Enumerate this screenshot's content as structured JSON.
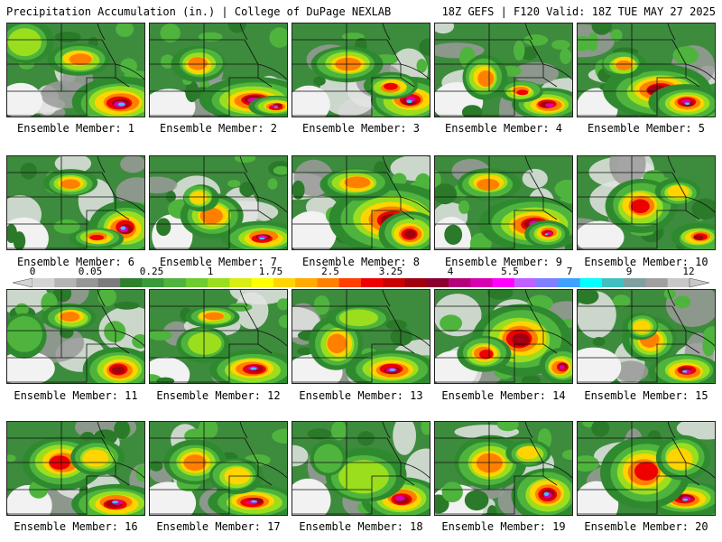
{
  "header": {
    "left": "Precipitation Accumulation (in.) | College of DuPage NEXLAB",
    "right": "18Z GEFS | F120 Valid: 18Z TUE MAY 27 2025"
  },
  "colorbar": {
    "labels": [
      "0",
      "0.05",
      "0.25",
      "1",
      "1.75",
      "2.5",
      "3.25",
      "4",
      "5.5",
      "7",
      "9",
      "12"
    ],
    "colors": [
      "#d4d4d4",
      "#b4b4b4",
      "#969696",
      "#7c7c7c",
      "#2f7f2f",
      "#3a9a3a",
      "#4fb43d",
      "#6dcc2e",
      "#9ade1e",
      "#d8ee12",
      "#ffff00",
      "#ffd400",
      "#ffaa00",
      "#ff8000",
      "#ff4000",
      "#ee0000",
      "#c80000",
      "#a00010",
      "#8a0030",
      "#b4007a",
      "#d800b0",
      "#ff00ff",
      "#c060ff",
      "#8080ff",
      "#40a0ff",
      "#00ffff",
      "#40c0c0",
      "#80a0a0",
      "#a0a0a0",
      "#c8c8c8"
    ]
  },
  "members": [
    {
      "caption": "Ensemble Member: 1"
    },
    {
      "caption": "Ensemble Member: 2"
    },
    {
      "caption": "Ensemble Member: 3"
    },
    {
      "caption": "Ensemble Member: 4"
    },
    {
      "caption": "Ensemble Member: 5"
    },
    {
      "caption": "Ensemble Member: 6"
    },
    {
      "caption": "Ensemble Member: 7"
    },
    {
      "caption": "Ensemble Member: 8"
    },
    {
      "caption": "Ensemble Member: 9"
    },
    {
      "caption": "Ensemble Member: 10"
    },
    {
      "caption": "Ensemble Member: 11"
    },
    {
      "caption": "Ensemble Member: 12"
    },
    {
      "caption": "Ensemble Member: 13"
    },
    {
      "caption": "Ensemble Member: 14"
    },
    {
      "caption": "Ensemble Member: 15"
    },
    {
      "caption": "Ensemble Member: 16"
    },
    {
      "caption": "Ensemble Member: 17"
    },
    {
      "caption": "Ensemble Member: 18"
    },
    {
      "caption": "Ensemble Member: 19"
    },
    {
      "caption": "Ensemble Member: 20"
    }
  ]
}
